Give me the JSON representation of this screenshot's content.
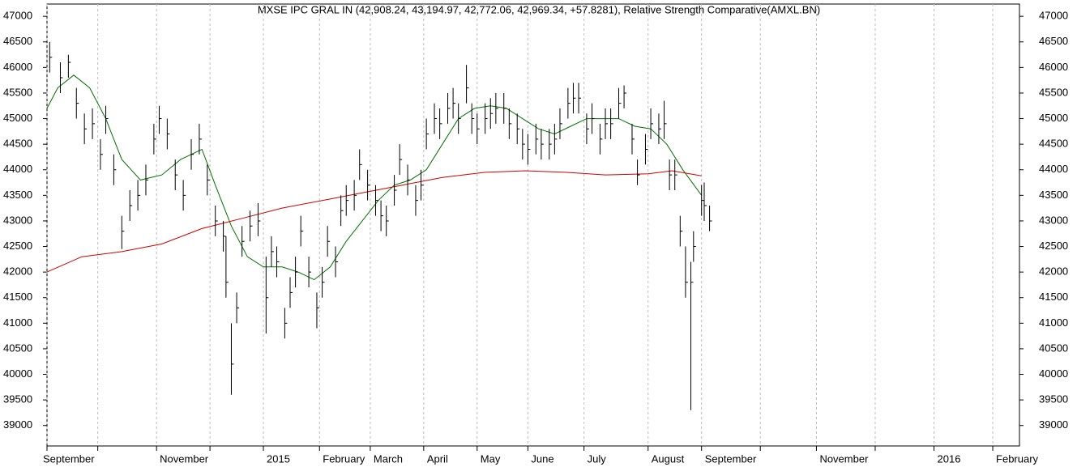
{
  "chart_data": {
    "type": "ohlc",
    "title": "MXSE IPC GRAL IN (42,908.24, 43,194.97, 42,772.06, 42,969.34, +57.8281), Relative Strength Comparative(AMXL.BN)",
    "x": [
      1,
      5,
      8,
      11,
      14,
      17,
      20,
      22,
      25,
      28,
      31,
      34,
      37,
      40,
      42,
      45,
      48,
      51,
      54,
      57,
      60,
      63,
      66,
      67,
      69,
      71,
      73,
      76,
      79,
      82,
      84,
      86,
      89,
      91,
      93,
      95,
      98,
      101,
      103,
      105,
      108,
      110,
      112,
      115,
      117,
      120,
      123,
      125,
      127,
      130,
      132,
      135,
      138,
      140,
      142,
      145,
      147,
      150,
      152,
      154,
      157,
      159,
      161,
      164,
      166,
      168,
      171,
      173,
      176,
      178,
      180,
      183,
      185,
      188,
      190,
      192,
      195,
      197,
      199,
      202,
      204,
      207,
      209,
      211,
      214,
      216,
      219,
      221,
      224,
      226,
      229,
      231,
      233,
      235,
      237,
      239,
      241,
      242,
      245,
      246,
      248
    ],
    "high": [
      46500,
      46100,
      46250,
      45600,
      45100,
      45200,
      44600,
      45250,
      44300,
      43100,
      43600,
      43800,
      44100,
      44900,
      45250,
      45000,
      44200,
      43800,
      44600,
      44900,
      44100,
      43300,
      43000,
      42700,
      41000,
      41600,
      42900,
      43200,
      43350,
      42300,
      42700,
      42500,
      41300,
      41900,
      42300,
      43100,
      42300,
      41600,
      42100,
      42900,
      42500,
      43500,
      43700,
      43800,
      44400,
      44000,
      43700,
      43400,
      43300,
      43900,
      44500,
      44100,
      43700,
      44000,
      45000,
      45300,
      45200,
      45500,
      45600,
      45300,
      46050,
      45300,
      45100,
      45300,
      45400,
      45500,
      45500,
      45200,
      45100,
      44800,
      44700,
      44900,
      44800,
      44800,
      44900,
      45200,
      45600,
      45700,
      45700,
      45100,
      45300,
      44900,
      45200,
      45200,
      45600,
      45650,
      44900,
      44200,
      44700,
      45200,
      45100,
      45350,
      44200,
      44200,
      43100,
      42500,
      42200,
      42800,
      43700,
      43750,
      43300
    ],
    "low": [
      45900,
      45500,
      45800,
      45000,
      44500,
      44600,
      44000,
      44700,
      43700,
      42450,
      43000,
      43200,
      43500,
      44300,
      44700,
      44400,
      43600,
      43200,
      44000,
      44300,
      43500,
      42700,
      42400,
      41500,
      39600,
      41000,
      42300,
      42600,
      42700,
      40800,
      42100,
      41900,
      40700,
      41300,
      41700,
      42500,
      41700,
      40900,
      41500,
      42300,
      41900,
      42900,
      43100,
      43200,
      43800,
      43400,
      43100,
      42800,
      42700,
      43300,
      43900,
      43500,
      43100,
      43400,
      44400,
      44700,
      44600,
      44900,
      45000,
      44700,
      45300,
      44700,
      44500,
      44700,
      44800,
      44900,
      44900,
      44600,
      44500,
      44200,
      44100,
      44300,
      44200,
      44200,
      44300,
      44600,
      45000,
      45100,
      45100,
      44500,
      44700,
      44300,
      44600,
      44600,
      45000,
      45200,
      44300,
      43700,
      44100,
      44600,
      44500,
      44600,
      43600,
      43600,
      42500,
      41500,
      39300,
      42200,
      43100,
      43000,
      42800
    ],
    "close": [
      46200,
      45800,
      46100,
      45300,
      44800,
      44900,
      44300,
      45000,
      44000,
      42800,
      43300,
      43500,
      43800,
      44600,
      45000,
      44700,
      43900,
      43500,
      44300,
      44600,
      43800,
      43000,
      42700,
      41800,
      40200,
      41300,
      42600,
      42900,
      43000,
      41500,
      42400,
      42200,
      41000,
      41600,
      42000,
      42800,
      42000,
      41300,
      41800,
      42600,
      42200,
      43200,
      43400,
      43500,
      44100,
      43700,
      43400,
      43100,
      43000,
      43600,
      44200,
      43800,
      43400,
      43700,
      44700,
      45000,
      44900,
      45200,
      45300,
      45000,
      45600,
      45000,
      44800,
      45000,
      45100,
      45200,
      45200,
      44900,
      44800,
      44500,
      44400,
      44600,
      44500,
      44500,
      44600,
      44900,
      45300,
      45400,
      45400,
      44800,
      45000,
      44600,
      44900,
      44900,
      45300,
      45500,
      44600,
      43900,
      44400,
      44900,
      44800,
      44900,
      43900,
      43900,
      42800,
      41800,
      41800,
      42500,
      43400,
      43300,
      43000
    ],
    "color": "#000000",
    "lines": [
      {
        "color": "#007000",
        "x": [
          0,
          4,
          10,
          16,
          22,
          28,
          35,
          43,
          50,
          58,
          63,
          69,
          75,
          81,
          88,
          94,
          100,
          106,
          112,
          118,
          124,
          130,
          136,
          142,
          148,
          154,
          160,
          166,
          172,
          178,
          184,
          190,
          196,
          202,
          208,
          214,
          220,
          226,
          232,
          238,
          245
        ],
        "values": [
          45200,
          45600,
          45850,
          45600,
          45000,
          44200,
          43800,
          43900,
          44200,
          44400,
          43700,
          42900,
          42300,
          42100,
          42100,
          42000,
          41850,
          42100,
          42600,
          43000,
          43400,
          43700,
          43800,
          44000,
          44500,
          45000,
          45200,
          45250,
          45200,
          45000,
          44800,
          44700,
          44850,
          45000,
          45000,
          45000,
          44850,
          44800,
          44500,
          44000,
          43500
        ]
      },
      {
        "color": "#cc0000",
        "x": [
          0,
          13,
          28,
          43,
          58,
          73,
          88,
          103,
          118,
          133,
          148,
          164,
          179,
          194,
          209,
          225,
          234,
          245
        ],
        "values": [
          42000,
          42300,
          42400,
          42550,
          42850,
          43050,
          43250,
          43400,
          43550,
          43700,
          43850,
          43950,
          43980,
          43950,
          43900,
          43920,
          43980,
          43880
        ]
      }
    ],
    "xlim": [
      0,
      364
    ],
    "xticks": [
      {
        "value": 0,
        "label": "September"
      },
      {
        "value": 19
      },
      {
        "value": 41,
        "label": "November"
      },
      {
        "value": 61
      },
      {
        "value": 81,
        "label": "2015"
      },
      {
        "value": 102,
        "label": "February"
      },
      {
        "value": 121,
        "label": "March"
      },
      {
        "value": 141,
        "label": "April"
      },
      {
        "value": 161,
        "label": "May"
      },
      {
        "value": 180,
        "label": "June"
      },
      {
        "value": 201,
        "label": "July"
      },
      {
        "value": 225,
        "label": "August"
      },
      {
        "value": 245,
        "label": "September"
      },
      {
        "value": 267
      },
      {
        "value": 288,
        "label": "November"
      },
      {
        "value": 310
      },
      {
        "value": 332,
        "label": "2016"
      },
      {
        "value": 354,
        "label": "February"
      }
    ],
    "ylim": [
      38600,
      47240
    ],
    "yticks": [
      39000,
      39500,
      40000,
      40500,
      41000,
      41500,
      42000,
      42500,
      43000,
      43500,
      44000,
      44500,
      45000,
      45500,
      46000,
      46500,
      47000
    ],
    "grid": "x"
  }
}
